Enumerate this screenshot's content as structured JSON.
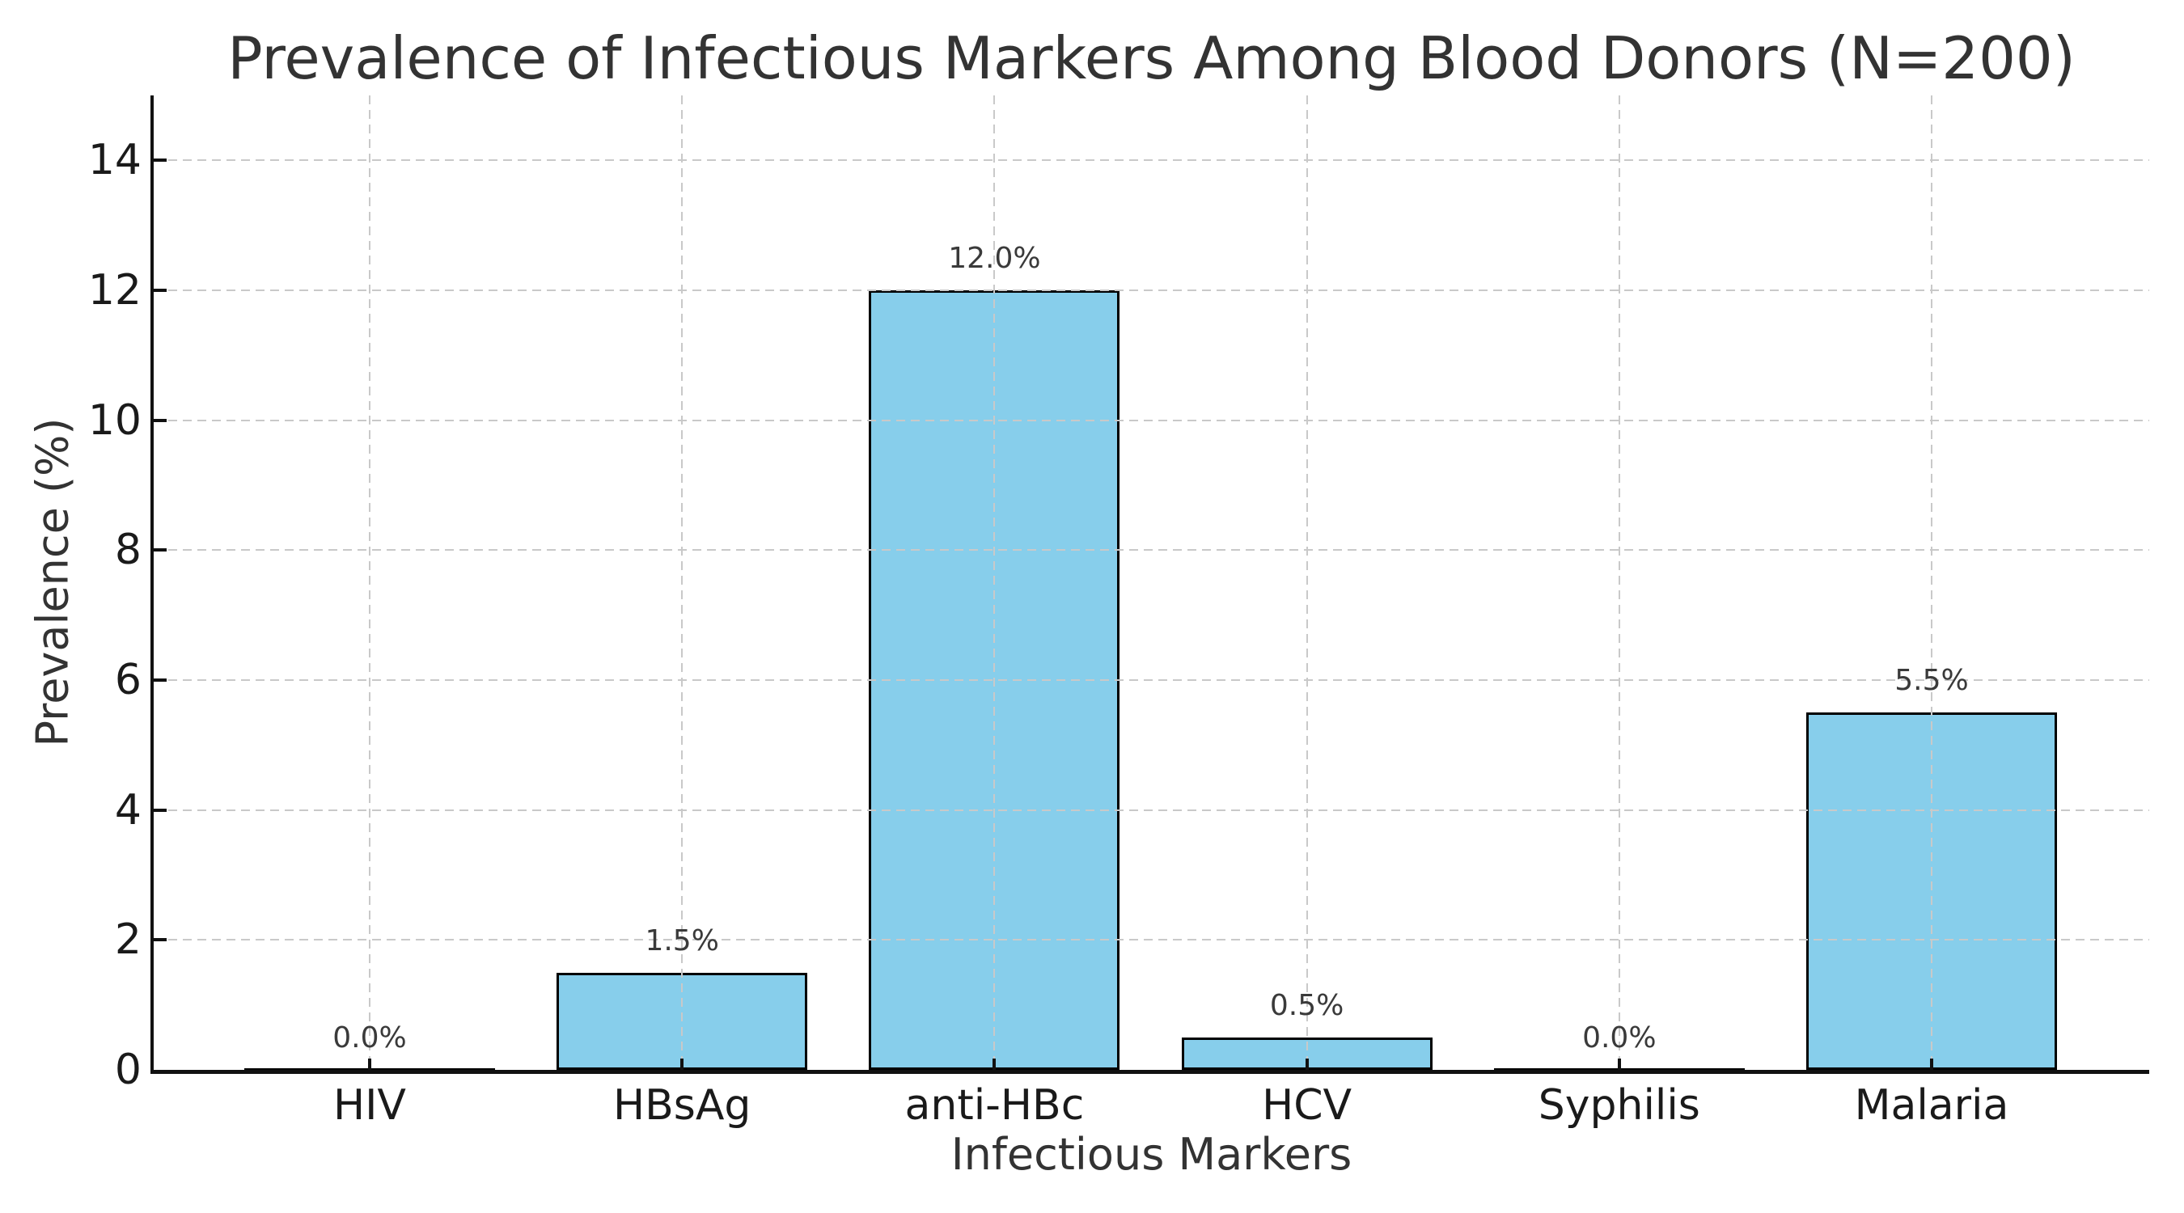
{
  "figure": {
    "background_color": "#ffffff"
  },
  "chart_data": {
    "type": "bar",
    "title": "Prevalence of Infectious Markers Among Blood Donors (N=200)",
    "xlabel": "Infectious Markers",
    "ylabel": "Prevalence (%)",
    "categories": [
      "HIV",
      "HBsAg",
      "anti-HBc",
      "HCV",
      "Syphilis",
      "Malaria"
    ],
    "values": [
      0.0,
      1.5,
      12.0,
      0.5,
      0.0,
      5.5
    ],
    "bar_value_labels": [
      "0.0%",
      "1.5%",
      "12.0%",
      "0.5%",
      "0.0%",
      "5.5%"
    ],
    "ylim": [
      0,
      15
    ],
    "yticks": [
      0,
      2,
      4,
      6,
      8,
      10,
      12,
      14
    ],
    "ytick_labels": [
      "0",
      "2",
      "4",
      "6",
      "8",
      "10",
      "12",
      "14"
    ],
    "grid": true,
    "grid_style": "dashed",
    "grid_on_top_of_bars": true,
    "legend": "none",
    "bar_color": "#87CEEB",
    "bar_edge_color": "#000000",
    "grid_color": "#c9c9c9",
    "spine_color": "#111111",
    "text_color": "#333333",
    "tick_label_color": "#1a1a1a",
    "bar_label_color": "#3a3a3a"
  }
}
